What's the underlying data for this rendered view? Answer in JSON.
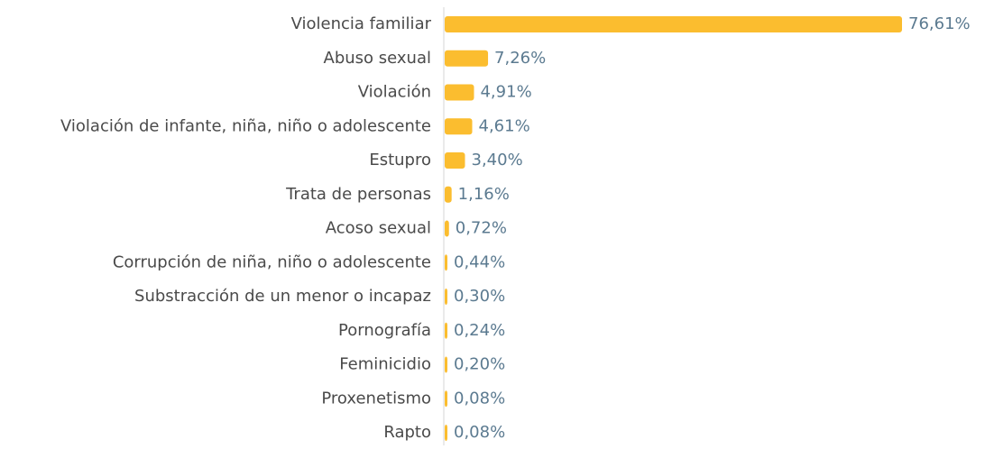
{
  "chart_data": {
    "type": "barh",
    "categories": [
      "Violencia familiar",
      "Abuso sexual",
      "Violación",
      "Violación de infante, niña, niño o adolescente",
      "Estupro",
      "Trata de personas",
      "Acoso sexual",
      "Corrupción de niña, niño o adolescente",
      "Substracción de un menor o incapaz",
      "Pornografía",
      "Feminicidio",
      "Proxenetismo",
      "Rapto"
    ],
    "values": [
      76.61,
      7.26,
      4.91,
      4.61,
      3.4,
      1.16,
      0.72,
      0.44,
      0.3,
      0.24,
      0.2,
      0.08,
      0.08
    ],
    "value_labels": [
      "76,61%",
      "7,26%",
      "4,91%",
      "4,61%",
      "3,40%",
      "1,16%",
      "0,72%",
      "0,44%",
      "0,30%",
      "0,24%",
      "0,20%",
      "0,08%",
      "0,08%"
    ],
    "color": "#fbbd2f"
  }
}
